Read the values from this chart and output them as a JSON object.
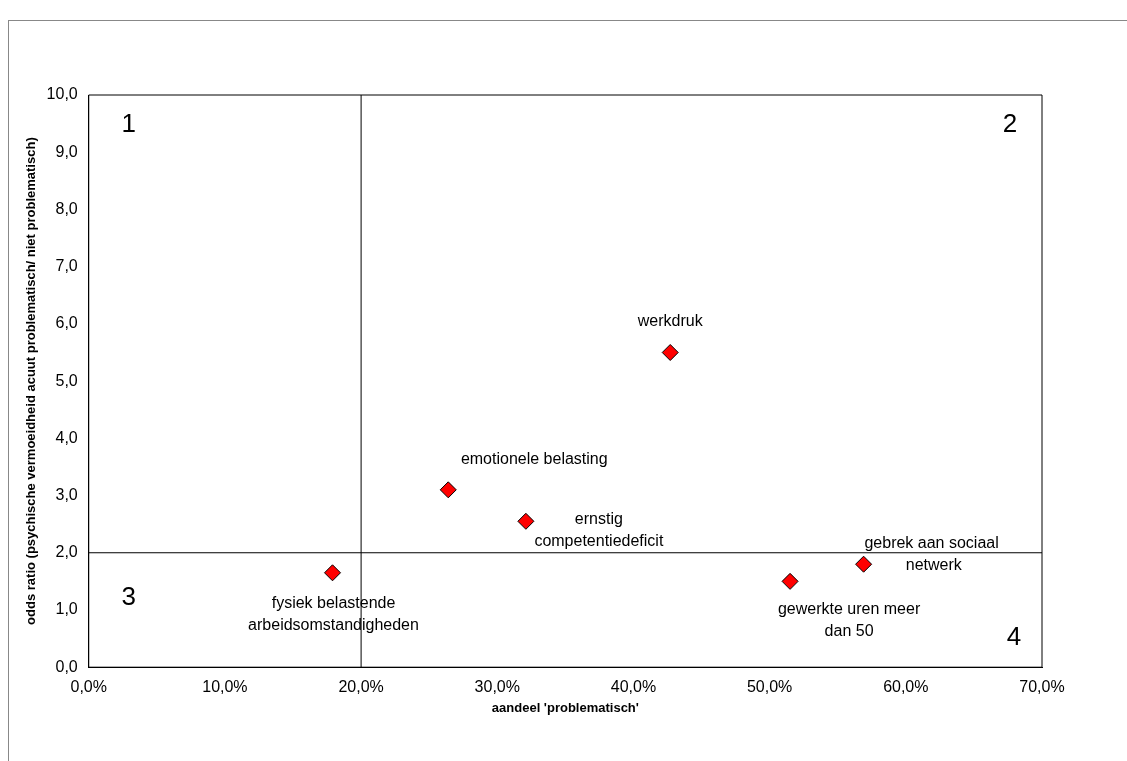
{
  "chart_data": {
    "type": "scatter",
    "xlabel": "aandeel 'problematisch'",
    "ylabel": "odds ratio (psychische vermoeidheid acuut problematisch/ niet problematisch)",
    "x": [
      17.9,
      26.4,
      32.1,
      42.7,
      51.5,
      56.9
    ],
    "series": [
      {
        "color": "#ff0000",
        "values": [
          1.65,
          3.1,
          2.55,
          5.5,
          1.5,
          1.8
        ]
      }
    ],
    "marker": "diamond",
    "grid": false,
    "legend": false,
    "xlim": [
      0,
      70
    ],
    "xticks": [
      {
        "value": 0,
        "label": "0,0%"
      },
      {
        "value": 10,
        "label": "10,0%"
      },
      {
        "value": 20,
        "label": "20,0%"
      },
      {
        "value": 30,
        "label": "30,0%"
      },
      {
        "value": 40,
        "label": "40,0%"
      },
      {
        "value": 50,
        "label": "50,0%"
      },
      {
        "value": 60,
        "label": "60,0%"
      },
      {
        "value": 70,
        "label": "70,0%"
      }
    ],
    "ylim": [
      0,
      10
    ],
    "yticks": [
      {
        "value": 0,
        "label": "0,0"
      },
      {
        "value": 1,
        "label": "1,0"
      },
      {
        "value": 2,
        "label": "2,0"
      },
      {
        "value": 3,
        "label": "3,0"
      },
      {
        "value": 4,
        "label": "4,0"
      },
      {
        "value": 5,
        "label": "5,0"
      },
      {
        "value": 6,
        "label": "6,0"
      },
      {
        "value": 7,
        "label": "7,0"
      },
      {
        "value": 8,
        "label": "8,0"
      },
      {
        "value": 9,
        "label": "9,0"
      },
      {
        "value": 10,
        "label": "10,0"
      }
    ],
    "ref_lines": [
      {
        "axis": "x",
        "value": 20,
        "color": "#000000"
      },
      {
        "axis": "y",
        "value": 2,
        "color": "#000000"
      }
    ],
    "annotations": [
      "fysiek belastende\narbeidsomstandigheden",
      "emotionele belasting",
      "ernstig\ncompetentiedeficit",
      "werkdruk",
      "gewerkte uren meer\ndan 50",
      "gebrek aan sociaal\n netwerk",
      "1",
      "2",
      "3",
      "4"
    ]
  }
}
